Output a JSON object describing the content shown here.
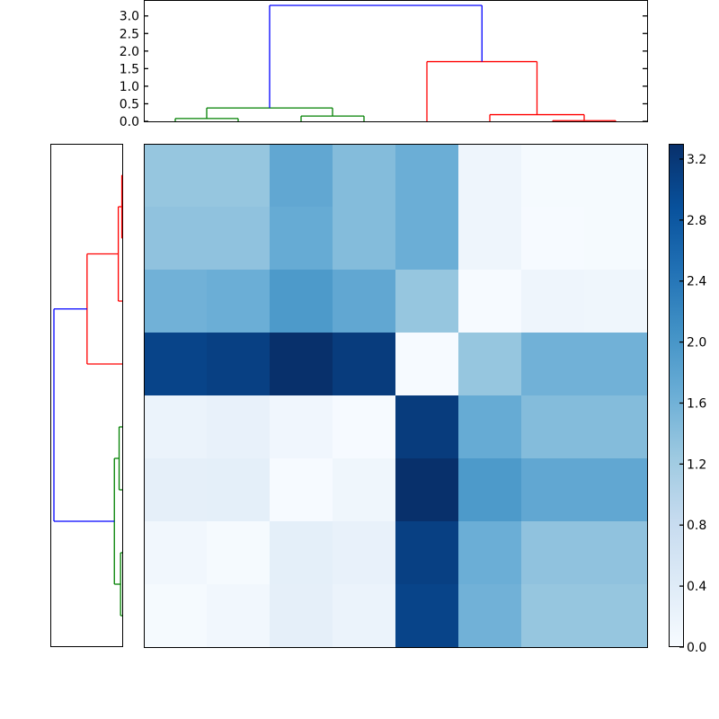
{
  "chart_data": [
    {
      "type": "dendrogram",
      "name": "top-dendrogram",
      "orientation": "top",
      "yticks": [
        "0.0",
        "0.5",
        "1.0",
        "1.5",
        "2.0",
        "2.5",
        "3.0"
      ],
      "ylim": [
        0,
        3.3
      ],
      "leaf_count": 8,
      "links": [
        {
          "left": 0,
          "right": 1,
          "height": 0.08,
          "color": "#008000"
        },
        {
          "left": 2,
          "right": 3,
          "height": 0.15,
          "color": "#008000"
        },
        {
          "left": "0-1",
          "right": "2-3",
          "height": 0.38,
          "color": "#008000"
        },
        {
          "left": 6,
          "right": 7,
          "height": 0.02,
          "color": "#ff0000"
        },
        {
          "left": 5,
          "right": "6-7",
          "height": 0.19,
          "color": "#ff0000"
        },
        {
          "left": 4,
          "right": "5-7",
          "height": 1.7,
          "color": "#ff0000"
        },
        {
          "left": "0-3",
          "right": "4-7",
          "height": 3.3,
          "color": "#0000ff"
        }
      ]
    },
    {
      "type": "dendrogram",
      "name": "left-dendrogram",
      "orientation": "left",
      "leaf_count": 8,
      "links": [
        {
          "top": 0,
          "bottom": 1,
          "height": 0.02,
          "color": "#ff0000"
        },
        {
          "top": "0-1",
          "bottom": 2,
          "height": 0.19,
          "color": "#ff0000"
        },
        {
          "top": "0-2",
          "bottom": 3,
          "height": 1.7,
          "color": "#ff0000"
        },
        {
          "top": 4,
          "bottom": 5,
          "height": 0.15,
          "color": "#008000"
        },
        {
          "top": 6,
          "bottom": 7,
          "height": 0.08,
          "color": "#008000"
        },
        {
          "top": "4-5",
          "bottom": "6-7",
          "height": 0.38,
          "color": "#008000"
        },
        {
          "top": "0-3",
          "bottom": "4-7",
          "height": 3.3,
          "color": "#0000ff"
        }
      ]
    },
    {
      "type": "heatmap",
      "name": "distance-matrix",
      "colormap": "Blues",
      "vmin": 0.0,
      "vmax": 3.3,
      "rows": 8,
      "cols": 8,
      "values": [
        [
          1.3,
          1.3,
          1.75,
          1.45,
          1.65,
          0.15,
          0.03,
          0.03
        ],
        [
          1.35,
          1.35,
          1.7,
          1.45,
          1.65,
          0.15,
          0.02,
          0.03
        ],
        [
          1.6,
          1.65,
          1.95,
          1.75,
          1.3,
          0.02,
          0.15,
          0.13
        ],
        [
          3.05,
          3.1,
          3.3,
          3.15,
          0.02,
          1.3,
          1.6,
          1.6
        ],
        [
          0.2,
          0.25,
          0.12,
          0.02,
          3.15,
          1.7,
          1.45,
          1.45
        ],
        [
          0.3,
          0.32,
          0.02,
          0.13,
          3.3,
          1.95,
          1.75,
          1.75
        ],
        [
          0.1,
          0.03,
          0.32,
          0.25,
          3.1,
          1.65,
          1.35,
          1.35
        ],
        [
          0.03,
          0.1,
          0.3,
          0.2,
          3.05,
          1.6,
          1.3,
          1.3
        ]
      ],
      "xticks": [],
      "yticks": []
    },
    {
      "type": "colorbar",
      "name": "colorbar",
      "colormap": "Blues",
      "vmin": 0.0,
      "vmax": 3.3,
      "ticks": [
        "0.0",
        "0.4",
        "0.8",
        "1.2",
        "1.6",
        "2.0",
        "2.4",
        "2.8",
        "3.2"
      ]
    }
  ]
}
